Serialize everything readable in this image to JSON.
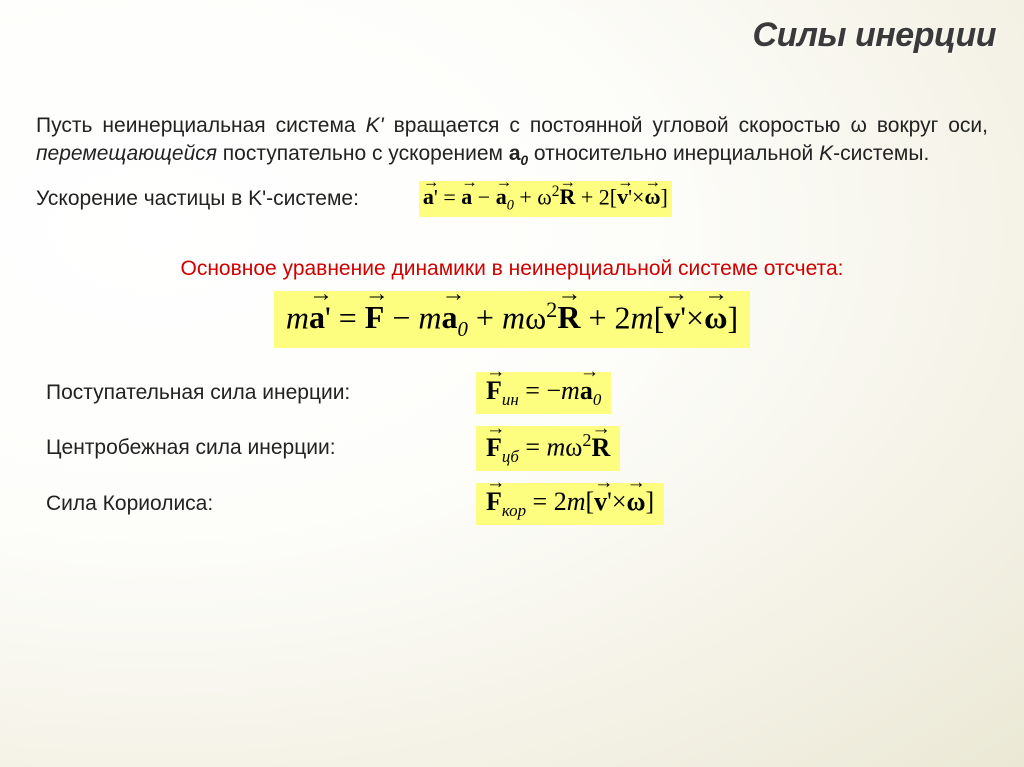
{
  "title": "Силы инерции",
  "para_parts": {
    "p1": "Пусть неинерциальная система ",
    "p2": "K'",
    "p3": " вращается с постоянной угловой скоростью ",
    "p4": "ω",
    "p5": " вокруг оси, ",
    "p6": "перемещающейся",
    "p7": " поступательно с ускорением ",
    "p8": "a",
    "p8sub": "0",
    "p9": " относительно инерциальной ",
    "p10": "K",
    "p11": "-системы."
  },
  "eq1_label": "Ускорение частицы в K'-системе:",
  "subtitle": "Основное уравнение динамики в неинерциальной системе отсчета:",
  "forces": {
    "f1_label": "Поступательная сила инерции:",
    "f2_label": "Центробежная сила инерции:",
    "f3_label": "Сила Кориолиса:"
  },
  "colors": {
    "highlight_bg": "#fdfd80",
    "title_color": "#3a3a3a",
    "text_color": "#222222",
    "red": "#d00000"
  },
  "fontsizes": {
    "title": 34,
    "body": 21,
    "eq_small": 22,
    "eq_main": 32,
    "eq_force": 26
  }
}
